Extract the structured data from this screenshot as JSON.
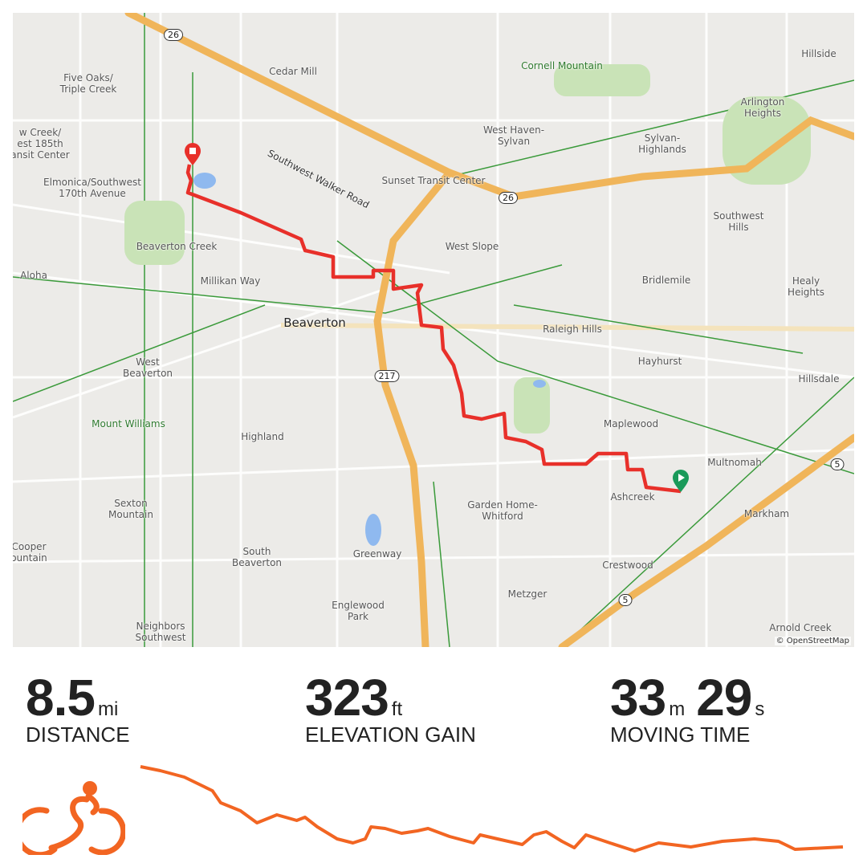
{
  "map": {
    "attribution": "© OpenStreetMap",
    "route_color": "#e8302a",
    "start_color": "#1a9a5a",
    "end_color": "#e8302a",
    "highway_color": "#f0b55a",
    "labels": [
      {
        "id": "five-oaks",
        "text": "Five Oaks/\nTriple Creek"
      },
      {
        "id": "cedar-mill",
        "text": "Cedar Mill"
      },
      {
        "id": "cornell-mountain",
        "text": "Cornell Mountain"
      },
      {
        "id": "hillside",
        "text": "Hillside"
      },
      {
        "id": "arlington-heights",
        "text": "Arlington\nHeights"
      },
      {
        "id": "west-haven",
        "text": "West Haven-\nSylvan"
      },
      {
        "id": "sylvan-highlands",
        "text": "Sylvan-\nHighlands"
      },
      {
        "id": "willow-creek",
        "text": "w Creek/\nest 185th\nansit Center"
      },
      {
        "id": "elmonica",
        "text": "Elmonica/Southwest\n170th Avenue"
      },
      {
        "id": "sunset-transit",
        "text": "Sunset Transit Center"
      },
      {
        "id": "southwest-hills",
        "text": "Southwest\nHills"
      },
      {
        "id": "beaverton-creek",
        "text": "Beaverton Creek"
      },
      {
        "id": "west-slope",
        "text": "West Slope"
      },
      {
        "id": "aloha",
        "text": "Aloha"
      },
      {
        "id": "millikan-way",
        "text": "Millikan Way"
      },
      {
        "id": "bridlemile",
        "text": "Bridlemile"
      },
      {
        "id": "healy-heights",
        "text": "Healy\nHeights"
      },
      {
        "id": "beaverton",
        "text": "Beaverton"
      },
      {
        "id": "raleigh-hills",
        "text": "Raleigh Hills"
      },
      {
        "id": "west-beaverton",
        "text": "West\nBeaverton"
      },
      {
        "id": "hayhurst",
        "text": "Hayhurst"
      },
      {
        "id": "hillsdale",
        "text": "Hillsdale"
      },
      {
        "id": "mount-williams",
        "text": "Mount Williams"
      },
      {
        "id": "maplewood",
        "text": "Maplewood"
      },
      {
        "id": "highland",
        "text": "Highland"
      },
      {
        "id": "multnomah",
        "text": "Multnomah"
      },
      {
        "id": "ashcreek",
        "text": "Ashcreek"
      },
      {
        "id": "sexton-mountain",
        "text": "Sexton\nMountain"
      },
      {
        "id": "garden-home",
        "text": "Garden Home-\nWhitford"
      },
      {
        "id": "markham",
        "text": "Markham"
      },
      {
        "id": "cooper-mountain",
        "text": "Cooper\nountain"
      },
      {
        "id": "south-beaverton",
        "text": "South\nBeaverton"
      },
      {
        "id": "greenway",
        "text": "Greenway"
      },
      {
        "id": "crestwood",
        "text": "Crestwood"
      },
      {
        "id": "metzger",
        "text": "Metzger"
      },
      {
        "id": "englewood-park",
        "text": "Englewood\nPark"
      },
      {
        "id": "neighbors-southwest",
        "text": "Neighbors\nSouthwest"
      },
      {
        "id": "arnold-creek",
        "text": "Arnold Creek"
      }
    ],
    "road_label": "Southwest Walker Road",
    "shields": {
      "us26_a": "26",
      "us26_b": "26",
      "or217": "217",
      "i5_a": "5",
      "i5_b": "5"
    }
  },
  "stats": {
    "distance": {
      "value": "8.5",
      "unit": "mi",
      "label": "DISTANCE"
    },
    "elevation": {
      "value": "323",
      "unit": "ft",
      "label": "ELEVATION GAIN"
    },
    "moving_time": {
      "minutes": "33",
      "minutes_unit": "m",
      "seconds": "29",
      "seconds_unit": "s",
      "label": "MOVING TIME"
    }
  },
  "activity_icon": "cyclist-icon",
  "accent_color": "#f26522",
  "elevation_profile": [
    [
      0,
      105
    ],
    [
      0.24,
      100
    ],
    [
      0.53,
      92
    ],
    [
      0.87,
      75
    ],
    [
      0.97,
      60
    ],
    [
      1.21,
      50
    ],
    [
      1.41,
      35
    ],
    [
      1.65,
      45
    ],
    [
      1.89,
      38
    ],
    [
      1.99,
      42
    ],
    [
      2.14,
      30
    ],
    [
      2.38,
      15
    ],
    [
      2.57,
      10
    ],
    [
      2.72,
      15
    ],
    [
      2.79,
      30
    ],
    [
      2.96,
      28
    ],
    [
      3.16,
      22
    ],
    [
      3.35,
      25
    ],
    [
      3.48,
      28
    ],
    [
      3.74,
      18
    ],
    [
      4.03,
      10
    ],
    [
      4.11,
      20
    ],
    [
      4.32,
      15
    ],
    [
      4.62,
      8
    ],
    [
      4.76,
      20
    ],
    [
      4.91,
      24
    ],
    [
      5.1,
      12
    ],
    [
      5.25,
      4
    ],
    [
      5.39,
      20
    ],
    [
      5.68,
      10
    ],
    [
      5.98,
      0
    ],
    [
      6.27,
      10
    ],
    [
      6.66,
      5
    ],
    [
      7.04,
      12
    ],
    [
      7.43,
      15
    ],
    [
      7.72,
      12
    ],
    [
      7.92,
      2
    ],
    [
      8.5,
      5
    ]
  ]
}
